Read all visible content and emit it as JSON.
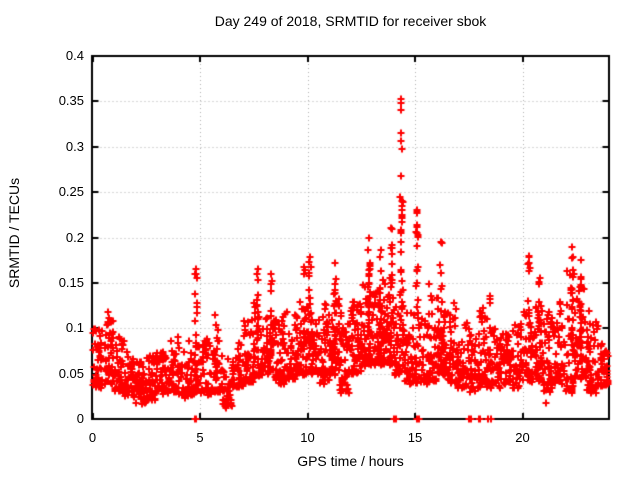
{
  "chart_data": {
    "type": "scatter",
    "title": "Day 249 of 2018, SRMTID for receiver sbok",
    "xlabel": "GPS time / hours",
    "ylabel": "SRMTID / TECUs",
    "xlim": [
      0,
      24
    ],
    "ylim": [
      0,
      0.4
    ],
    "xticks": {
      "values": [
        0,
        5,
        10,
        15,
        20
      ],
      "labels": [
        "0",
        "5",
        "10",
        "15",
        "20"
      ]
    },
    "yticks": {
      "values": [
        0,
        0.05,
        0.1,
        0.15,
        0.2,
        0.25,
        0.3,
        0.35,
        0.4
      ],
      "labels": [
        "0",
        "0.05",
        "0.1",
        "0.15",
        "0.2",
        "0.25",
        "0.3",
        "0.35",
        "0.4"
      ]
    },
    "grid": true,
    "legend": "none",
    "background": "#ffffff",
    "axis_color": "#000000",
    "grid_color": "#b0b0b0",
    "marker": {
      "glyph": "plus",
      "color": "#ff0000",
      "size": 7,
      "stroke": 2
    },
    "series": [
      {
        "name": "SRMTID",
        "representation": "density-profile",
        "seed": 7,
        "bin_width_hours": 0.5,
        "bins_t_lo_hi_n": [
          [
            0.0,
            0.035,
            0.1,
            45
          ],
          [
            0.5,
            0.04,
            0.112,
            40
          ],
          [
            1.0,
            0.03,
            0.095,
            40
          ],
          [
            1.5,
            0.025,
            0.075,
            40
          ],
          [
            2.0,
            0.018,
            0.065,
            45
          ],
          [
            2.5,
            0.022,
            0.072,
            45
          ],
          [
            3.0,
            0.028,
            0.075,
            40
          ],
          [
            3.5,
            0.03,
            0.09,
            40
          ],
          [
            4.0,
            0.025,
            0.08,
            35
          ],
          [
            4.5,
            0.028,
            0.09,
            38
          ],
          [
            5.0,
            0.025,
            0.09,
            35
          ],
          [
            5.5,
            0.03,
            0.1,
            35
          ],
          [
            6.0,
            0.012,
            0.07,
            35
          ],
          [
            6.5,
            0.035,
            0.09,
            40
          ],
          [
            7.0,
            0.04,
            0.11,
            40
          ],
          [
            7.5,
            0.048,
            0.13,
            45
          ],
          [
            8.0,
            0.045,
            0.12,
            45
          ],
          [
            8.5,
            0.04,
            0.115,
            45
          ],
          [
            9.0,
            0.045,
            0.12,
            45
          ],
          [
            9.5,
            0.05,
            0.13,
            45
          ],
          [
            10.0,
            0.05,
            0.135,
            50
          ],
          [
            10.5,
            0.04,
            0.13,
            50
          ],
          [
            11.0,
            0.05,
            0.14,
            50
          ],
          [
            11.5,
            0.03,
            0.12,
            50
          ],
          [
            12.0,
            0.05,
            0.13,
            50
          ],
          [
            12.5,
            0.06,
            0.15,
            55
          ],
          [
            13.0,
            0.06,
            0.15,
            55
          ],
          [
            13.5,
            0.06,
            0.155,
            50
          ],
          [
            14.0,
            0.05,
            0.14,
            42
          ],
          [
            14.5,
            0.04,
            0.13,
            40
          ],
          [
            15.0,
            0.04,
            0.12,
            40
          ],
          [
            15.5,
            0.04,
            0.15,
            45
          ],
          [
            16.0,
            0.05,
            0.14,
            50
          ],
          [
            16.5,
            0.04,
            0.13,
            45
          ],
          [
            17.0,
            0.035,
            0.105,
            40
          ],
          [
            17.5,
            0.03,
            0.1,
            40
          ],
          [
            18.0,
            0.035,
            0.125,
            40
          ],
          [
            18.5,
            0.035,
            0.1,
            40
          ],
          [
            19.0,
            0.04,
            0.095,
            40
          ],
          [
            19.5,
            0.035,
            0.105,
            40
          ],
          [
            20.0,
            0.04,
            0.12,
            45
          ],
          [
            20.5,
            0.04,
            0.13,
            45
          ],
          [
            21.0,
            0.03,
            0.12,
            40
          ],
          [
            21.5,
            0.04,
            0.13,
            40
          ],
          [
            22.0,
            0.03,
            0.165,
            52
          ],
          [
            22.5,
            0.045,
            0.16,
            50
          ],
          [
            23.0,
            0.03,
            0.12,
            45
          ],
          [
            23.5,
            0.035,
            0.09,
            40
          ]
        ],
        "spikes_t_top_n": [
          [
            0.74,
            0.118,
            4
          ],
          [
            4.8,
            0.165,
            14
          ],
          [
            5.7,
            0.115,
            5
          ],
          [
            7.7,
            0.165,
            10
          ],
          [
            8.3,
            0.16,
            10
          ],
          [
            9.85,
            0.168,
            10
          ],
          [
            10.1,
            0.178,
            12
          ],
          [
            11.3,
            0.172,
            12
          ],
          [
            12.85,
            0.2,
            18
          ],
          [
            13.4,
            0.186,
            14
          ],
          [
            13.9,
            0.21,
            16
          ],
          [
            14.38,
            0.24,
            20
          ],
          [
            15.1,
            0.23,
            16
          ],
          [
            16.2,
            0.195,
            14
          ],
          [
            18.5,
            0.135,
            6
          ],
          [
            20.3,
            0.18,
            12
          ],
          [
            20.8,
            0.155,
            10
          ],
          [
            22.3,
            0.19,
            16
          ],
          [
            22.7,
            0.175,
            12
          ]
        ],
        "extreme_points": [
          [
            14.35,
            0.353
          ],
          [
            14.36,
            0.348
          ],
          [
            14.36,
            0.341
          ],
          [
            14.37,
            0.315
          ],
          [
            14.36,
            0.306
          ],
          [
            14.38,
            0.297
          ],
          [
            14.33,
            0.268
          ],
          [
            14.31,
            0.245
          ],
          [
            14.42,
            0.239
          ],
          [
            14.4,
            0.225
          ],
          [
            15.08,
            0.228
          ],
          [
            15.11,
            0.212
          ]
        ],
        "zero_value_times": [
          4.77,
          4.79,
          4.8,
          4.81,
          4.83,
          14.03,
          14.12,
          15.08,
          15.17,
          17.49,
          17.59,
          17.99,
          18.04,
          18.4,
          18.55
        ],
        "low_outliers": [
          [
            2.3,
            0.016
          ],
          [
            6.2,
            0.012
          ],
          [
            21.1,
            0.018
          ]
        ]
      }
    ]
  }
}
